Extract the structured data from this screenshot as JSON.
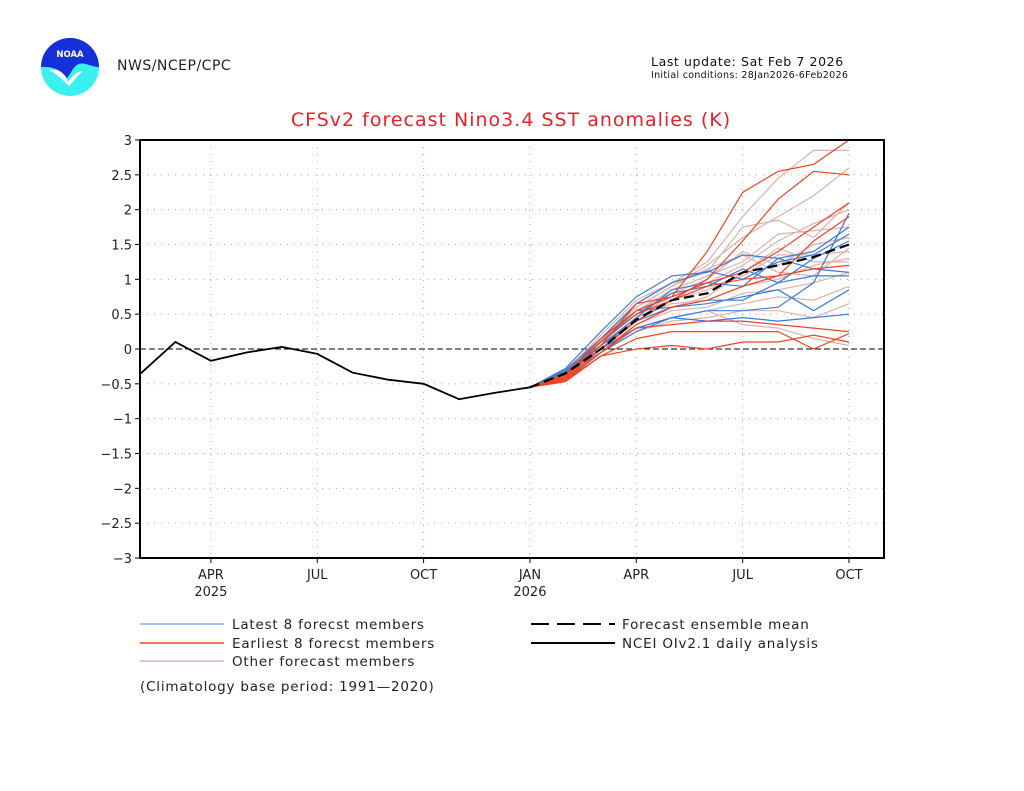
{
  "header": {
    "logo_text": "NOAA",
    "agency": "NWS/NCEP/CPC",
    "last_update": "Last update: Sat Feb 7 2026",
    "initial_conditions": "Initial conditions: 28Jan2026-6Feb2026"
  },
  "colors": {
    "title": "#e8202a",
    "latest_members": "#3d7ad8",
    "latest_members_legend": "#86aee6",
    "earliest_members": "#ee4526",
    "other_members": "#d9b3aa",
    "ensemble_mean": "#000000",
    "observed": "#000000"
  },
  "chart_data": {
    "type": "line",
    "title": "CFSv2 forecast Nino3.4 SST anomalies (K)",
    "xlabel": "",
    "ylabel": "",
    "ylim": [
      -3,
      3
    ],
    "yticks": [
      3,
      2.5,
      2,
      1.5,
      1,
      0.5,
      0,
      -0.5,
      -1,
      -1.5,
      -2,
      -2.5,
      -3
    ],
    "ytick_labels": [
      "3",
      "2.5",
      "2",
      "1.5",
      "1",
      "0.5",
      "0",
      "−0.5",
      "−1",
      "−1.5",
      "−2",
      "−2.5",
      "−3"
    ],
    "x_months": [
      "Feb 2025",
      "Mar 2025",
      "Apr 2025",
      "May 2025",
      "Jun 2025",
      "Jul 2025",
      "Aug 2025",
      "Sep 2025",
      "Oct 2025",
      "Nov 2025",
      "Dec 2025",
      "Jan 2026",
      "Feb 2026",
      "Mar 2026",
      "Apr 2026",
      "May 2026",
      "Jun 2026",
      "Jul 2026",
      "Aug 2026",
      "Sep 2026",
      "Oct 2026"
    ],
    "xlim_index": [
      0,
      21
    ],
    "xticks": [
      {
        "index": 2,
        "label": "APR",
        "year": "2025"
      },
      {
        "index": 5,
        "label": "JUL",
        "year": ""
      },
      {
        "index": 8,
        "label": "OCT",
        "year": ""
      },
      {
        "index": 11,
        "label": "JAN",
        "year": "2026"
      },
      {
        "index": 14,
        "label": "APR",
        "year": ""
      },
      {
        "index": 17,
        "label": "JUL",
        "year": ""
      },
      {
        "index": 20,
        "label": "OCT",
        "year": ""
      }
    ],
    "grid": true,
    "zero_line": true,
    "forecast_start_index": 11,
    "series": [
      {
        "name": "NCEI OIv2.1 daily analysis",
        "kind": "observed",
        "start_index": 0,
        "values": [
          -0.36,
          0.1,
          -0.17,
          -0.05,
          0.03,
          -0.07,
          -0.34,
          -0.44,
          -0.5,
          -0.72,
          -0.63,
          -0.55
        ]
      },
      {
        "name": "Forecast ensemble mean",
        "kind": "mean",
        "start_index": 11,
        "values": [
          -0.55,
          -0.35,
          0.0,
          0.42,
          0.7,
          0.8,
          1.1,
          1.2,
          1.32,
          1.5
        ]
      }
    ],
    "members": {
      "start_index": 11,
      "latest": [
        [
          -0.55,
          -0.28,
          0.25,
          0.75,
          1.05,
          1.1,
          1.35,
          1.3,
          1.4,
          1.75
        ],
        [
          -0.55,
          -0.3,
          0.15,
          0.65,
          0.95,
          1.12,
          1.0,
          1.25,
          1.35,
          1.65
        ],
        [
          -0.55,
          -0.32,
          0.1,
          0.5,
          0.8,
          0.9,
          1.15,
          0.95,
          1.05,
          1.05
        ],
        [
          -0.55,
          -0.33,
          0.05,
          0.4,
          0.6,
          0.65,
          0.75,
          0.85,
          0.55,
          0.85
        ],
        [
          -0.55,
          -0.35,
          0.0,
          0.3,
          0.45,
          0.4,
          0.45,
          0.4,
          0.45,
          0.5
        ],
        [
          -0.55,
          -0.36,
          0.05,
          0.45,
          0.85,
          0.95,
          0.9,
          1.3,
          1.15,
          1.1
        ],
        [
          -0.55,
          -0.34,
          0.1,
          0.55,
          0.6,
          0.7,
          0.7,
          0.95,
          1.3,
          1.55
        ],
        [
          -0.55,
          -0.37,
          -0.05,
          0.25,
          0.45,
          0.55,
          0.55,
          0.6,
          0.95,
          1.95
        ]
      ],
      "earliest": [
        [
          -0.55,
          -0.35,
          0.15,
          0.55,
          0.75,
          1.4,
          2.25,
          2.55,
          2.65,
          3.0
        ],
        [
          -0.55,
          -0.38,
          0.1,
          0.5,
          0.7,
          1.0,
          1.55,
          2.15,
          2.55,
          2.5
        ],
        [
          -0.55,
          -0.4,
          0.05,
          0.65,
          0.75,
          0.95,
          1.1,
          1.4,
          1.75,
          2.1
        ],
        [
          -0.55,
          -0.42,
          0.0,
          0.4,
          0.7,
          0.9,
          1.0,
          1.05,
          1.55,
          1.9
        ],
        [
          -0.55,
          -0.43,
          -0.05,
          0.35,
          0.6,
          0.7,
          0.9,
          1.05,
          1.15,
          1.2
        ],
        [
          -0.55,
          -0.45,
          -0.05,
          0.3,
          0.35,
          0.4,
          0.4,
          0.35,
          0.3,
          0.25
        ],
        [
          -0.55,
          -0.45,
          -0.1,
          0.15,
          0.25,
          0.25,
          0.25,
          0.25,
          0.0,
          0.22
        ],
        [
          -0.55,
          -0.47,
          -0.1,
          0.0,
          0.05,
          0.0,
          0.1,
          0.1,
          0.2,
          0.1
        ]
      ],
      "other": [
        [
          -0.55,
          -0.33,
          0.2,
          0.7,
          0.95,
          1.25,
          1.9,
          2.45,
          2.85,
          2.85
        ],
        [
          -0.55,
          -0.36,
          0.15,
          0.6,
          0.9,
          1.2,
          1.6,
          1.9,
          2.2,
          2.6
        ],
        [
          -0.55,
          -0.35,
          0.1,
          0.65,
          0.95,
          1.1,
          1.75,
          1.85,
          1.6,
          2.1
        ],
        [
          -0.55,
          -0.37,
          0.1,
          0.5,
          0.75,
          0.95,
          1.2,
          1.55,
          1.8,
          2.0
        ],
        [
          -0.55,
          -0.38,
          0.05,
          0.55,
          0.8,
          1.0,
          1.4,
          1.2,
          1.5,
          1.6
        ],
        [
          -0.55,
          -0.4,
          0.05,
          0.45,
          0.7,
          0.85,
          1.05,
          1.35,
          1.35,
          1.4
        ],
        [
          -0.55,
          -0.41,
          0.0,
          0.45,
          0.65,
          0.7,
          0.9,
          1.0,
          1.2,
          1.3
        ],
        [
          -0.55,
          -0.42,
          0.0,
          0.35,
          0.55,
          0.6,
          0.8,
          0.85,
          0.95,
          1.1
        ],
        [
          -0.55,
          -0.43,
          -0.05,
          0.3,
          0.45,
          0.55,
          0.65,
          0.75,
          0.7,
          0.9
        ],
        [
          -0.55,
          -0.44,
          -0.05,
          0.25,
          0.4,
          0.45,
          0.55,
          0.55,
          0.45,
          0.65
        ],
        [
          -0.55,
          -0.4,
          0.05,
          0.4,
          0.6,
          0.75,
          1.1,
          1.45,
          1.25,
          1.25
        ],
        [
          -0.55,
          -0.39,
          0.1,
          0.55,
          0.85,
          1.05,
          1.25,
          1.65,
          1.7,
          1.75
        ],
        [
          -0.55,
          -0.42,
          0.0,
          0.3,
          0.45,
          0.55,
          0.35,
          0.3,
          0.15,
          0.05
        ],
        [
          -0.55,
          -0.36,
          0.12,
          0.6,
          0.9,
          1.15,
          1.35,
          1.1,
          1.05,
          1.45
        ]
      ]
    },
    "legend": {
      "placement": "bottom",
      "entries": [
        {
          "label": "Latest 8 forecst members",
          "kind": "latest"
        },
        {
          "label": "Earliest 8 forecst members",
          "kind": "earliest"
        },
        {
          "label": "Other forecast members",
          "kind": "other"
        },
        {
          "label": "Forecast ensemble mean",
          "kind": "mean"
        },
        {
          "label": "NCEI OIv2.1 daily analysis",
          "kind": "observed"
        }
      ],
      "note": "(Climatology base period: 1991—2020)"
    }
  }
}
